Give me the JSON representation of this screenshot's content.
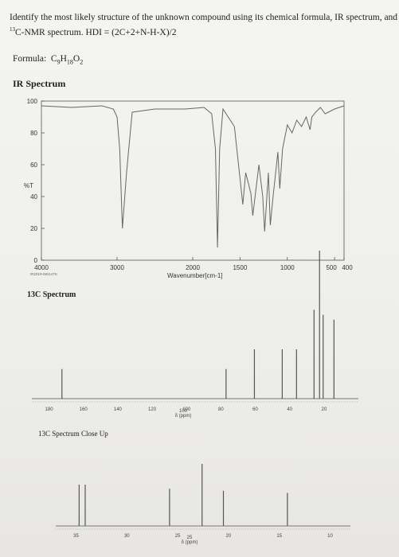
{
  "header": {
    "line1": "Identify the most likely structure of the unknown compound using its chemical formula, IR spectrum, and",
    "line2_sup": "13",
    "line2": "C-NMR spectrum. HDI = (2C+2+N-H-X)/2"
  },
  "formula": {
    "label": "Formula:",
    "c_count": "9",
    "h_count": "18",
    "o_count": "2"
  },
  "ir": {
    "title": "IR Spectrum",
    "y_label": "%T",
    "x_label": "Wavenumber[cm-1]",
    "code": "IR2019-08214TK",
    "y_ticks": [
      "100",
      "80",
      "60",
      "40",
      "20",
      "0"
    ],
    "x_ticks": [
      "4000",
      "3000",
      "2000",
      "1500",
      "1000",
      "500",
      "400"
    ]
  },
  "c13": {
    "title": "13C Spectrum",
    "x_ticks": [
      "180",
      "160",
      "140",
      "120",
      "100",
      "80",
      "60",
      "40",
      "20"
    ],
    "x_unit_1": "100",
    "x_unit_2": "δ (ppm)"
  },
  "c13_close": {
    "title": "13C Spectrum Close Up",
    "x_ticks": [
      "35",
      "30",
      "25",
      "20",
      "15",
      "10"
    ],
    "x_unit_1": "25",
    "x_unit_2": "δ (ppm)"
  },
  "chart_data": [
    {
      "type": "line",
      "title": "IR Spectrum",
      "xlabel": "Wavenumber[cm-1]",
      "ylabel": "%T",
      "xlim": [
        4000,
        400
      ],
      "ylim": [
        0,
        100
      ],
      "x": [
        4000,
        3600,
        3200,
        3050,
        3000,
        2965,
        2930,
        2875,
        2800,
        2500,
        2100,
        1880,
        1800,
        1760,
        1738,
        1715,
        1680,
        1560,
        1470,
        1440,
        1385,
        1365,
        1300,
        1260,
        1240,
        1200,
        1180,
        1150,
        1100,
        1080,
        1050,
        1000,
        950,
        900,
        850,
        800,
        760,
        740,
        700,
        650,
        600,
        500,
        400
      ],
      "y": [
        97,
        96,
        97,
        95,
        90,
        70,
        20,
        55,
        93,
        95,
        95,
        96,
        92,
        70,
        8,
        70,
        95,
        84,
        35,
        55,
        42,
        28,
        60,
        40,
        18,
        55,
        22,
        40,
        68,
        45,
        70,
        85,
        80,
        88,
        84,
        90,
        82,
        90,
        93,
        96,
        92,
        95,
        97
      ]
    },
    {
      "type": "bar",
      "title": "13C Spectrum",
      "xlabel": "δ (ppm)",
      "xlim": [
        190,
        0
      ],
      "x": [
        172.5,
        77.0,
        60.5,
        44.3,
        36.0,
        25.8,
        22.6,
        20.5,
        14.2
      ],
      "values": [
        0.6,
        0.6,
        1.0,
        1.0,
        1.0,
        1.8,
        3.0,
        1.7,
        1.6
      ]
    },
    {
      "type": "bar",
      "title": "13C Spectrum Close Up",
      "xlabel": "δ (ppm)",
      "xlim": [
        37,
        8
      ],
      "x": [
        34.7,
        34.1,
        25.8,
        22.6,
        20.5,
        14.2
      ],
      "values": [
        2.0,
        2.0,
        1.8,
        3.0,
        1.7,
        1.6
      ]
    }
  ]
}
